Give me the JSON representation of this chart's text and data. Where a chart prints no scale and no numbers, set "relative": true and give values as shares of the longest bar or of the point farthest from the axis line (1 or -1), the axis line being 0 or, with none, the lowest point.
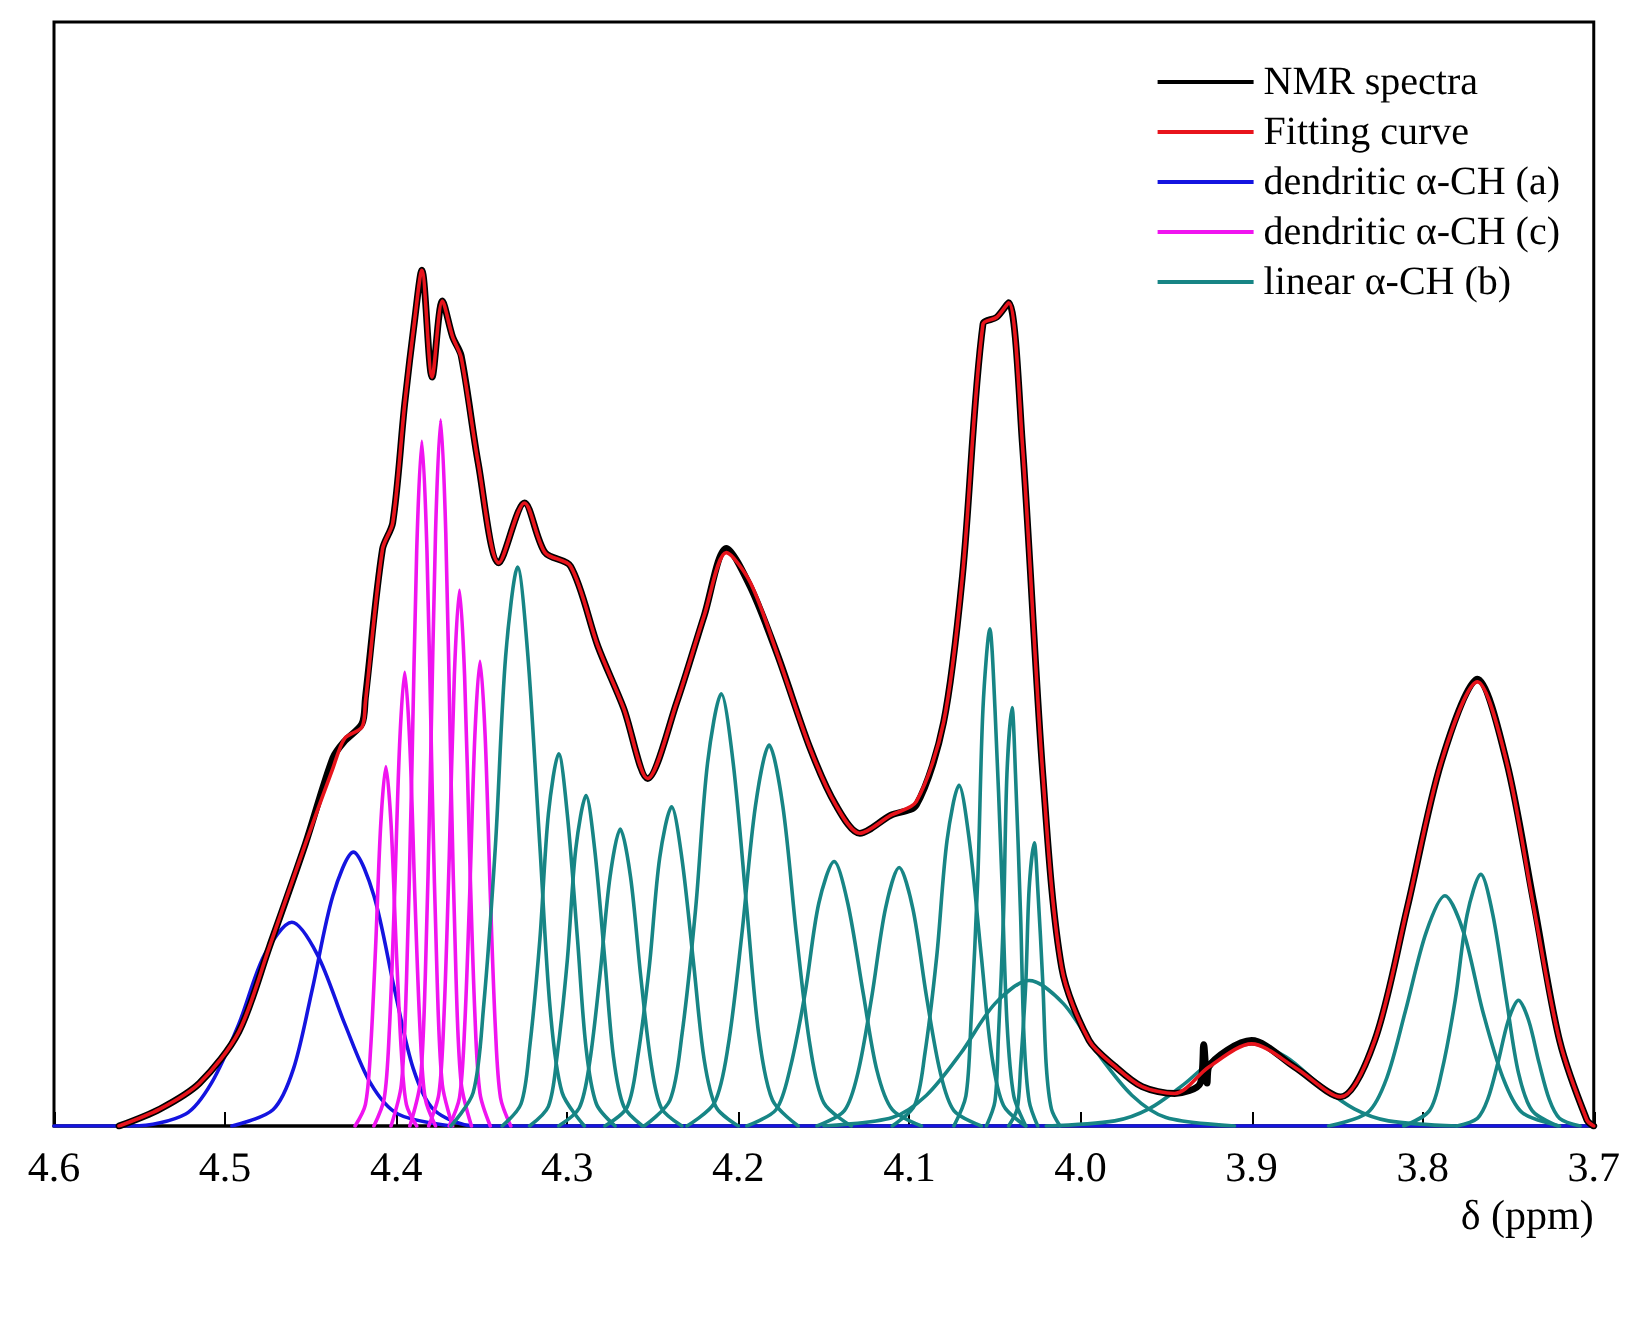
{
  "chart_data": {
    "type": "line",
    "relative": true,
    "xlabel": "δ (ppm)",
    "xlim": [
      4.6,
      3.7
    ],
    "xticks": [
      {
        "value": 4.6,
        "label": "4.6"
      },
      {
        "value": 4.5,
        "label": "4.5"
      },
      {
        "value": 4.4,
        "label": "4.4"
      },
      {
        "value": 4.3,
        "label": "4.3"
      },
      {
        "value": 4.2,
        "label": "4.2"
      },
      {
        "value": 4.1,
        "label": "4.1"
      },
      {
        "value": 4.0,
        "label": "4.0"
      },
      {
        "value": 3.9,
        "label": "3.9"
      },
      {
        "value": 3.8,
        "label": "3.8"
      },
      {
        "value": 3.7,
        "label": "3.7"
      }
    ],
    "grid": false,
    "legend": "top right",
    "marker": "none",
    "series": [
      {
        "name": "NMR spectra",
        "color": "#000000",
        "x": [
          4.562,
          4.538,
          4.515,
          4.492,
          4.474,
          4.453,
          4.437,
          4.43,
          4.42,
          4.418,
          4.408,
          4.402,
          4.395,
          4.389,
          4.385,
          4.379,
          4.373,
          4.367,
          4.362,
          4.352,
          4.34,
          4.325,
          4.313,
          4.298,
          4.282,
          4.267,
          4.253,
          4.236,
          4.22,
          4.207,
          4.193,
          4.177,
          4.158,
          4.143,
          4.129,
          4.111,
          4.096,
          4.08,
          4.069,
          4.057,
          4.049,
          4.042,
          4.034,
          4.022,
          4.011,
          3.995,
          3.98,
          3.964,
          3.945,
          3.93,
          3.928,
          3.926,
          3.925,
          3.9,
          3.875,
          3.848,
          3.828,
          3.809,
          3.789,
          3.768,
          3.751,
          3.735,
          3.72,
          3.704,
          3.7
        ],
        "values": [
          0,
          0.02,
          0.05,
          0.11,
          0.21,
          0.33,
          0.43,
          0.45,
          0.47,
          0.5,
          0.674,
          0.705,
          0.844,
          0.945,
          1,
          0.875,
          0.964,
          0.922,
          0.9,
          0.774,
          0.658,
          0.728,
          0.67,
          0.654,
          0.56,
          0.488,
          0.406,
          0.495,
          0.596,
          0.675,
          0.63,
          0.55,
          0.441,
          0.375,
          0.342,
          0.363,
          0.375,
          0.472,
          0.643,
          0.937,
          0.945,
          0.962,
          0.798,
          0.41,
          0.185,
          0.1,
          0.07,
          0.046,
          0.038,
          0.05,
          0.095,
          0.05,
          0.069,
          0.1,
          0.069,
          0.034,
          0.1,
          0.255,
          0.426,
          0.522,
          0.426,
          0.26,
          0.1,
          0.007,
          0
        ]
      },
      {
        "name": "Fitting curve",
        "color": "#e8141c",
        "x": [
          4.562,
          4.538,
          4.515,
          4.492,
          4.474,
          4.453,
          4.437,
          4.43,
          4.42,
          4.418,
          4.408,
          4.402,
          4.395,
          4.389,
          4.385,
          4.379,
          4.373,
          4.367,
          4.362,
          4.352,
          4.34,
          4.325,
          4.313,
          4.298,
          4.282,
          4.267,
          4.253,
          4.236,
          4.22,
          4.207,
          4.193,
          4.177,
          4.158,
          4.143,
          4.129,
          4.111,
          4.096,
          4.08,
          4.069,
          4.057,
          4.049,
          4.042,
          4.034,
          4.022,
          4.011,
          3.995,
          3.98,
          3.964,
          3.945,
          3.925,
          3.9,
          3.875,
          3.848,
          3.828,
          3.809,
          3.789,
          3.768,
          3.751,
          3.735,
          3.72,
          3.704,
          3.7
        ],
        "values": [
          0,
          0.02,
          0.05,
          0.11,
          0.21,
          0.33,
          0.418,
          0.453,
          0.466,
          0.495,
          0.674,
          0.705,
          0.844,
          0.945,
          1,
          0.875,
          0.964,
          0.922,
          0.898,
          0.774,
          0.658,
          0.728,
          0.67,
          0.654,
          0.56,
          0.488,
          0.406,
          0.495,
          0.596,
          0.67,
          0.635,
          0.55,
          0.441,
          0.375,
          0.342,
          0.363,
          0.379,
          0.472,
          0.643,
          0.937,
          0.945,
          0.962,
          0.798,
          0.41,
          0.185,
          0.1,
          0.07,
          0.046,
          0.038,
          0.069,
          0.096,
          0.069,
          0.034,
          0.1,
          0.255,
          0.426,
          0.519,
          0.426,
          0.255,
          0.1,
          0.007,
          0
        ]
      },
      {
        "name": "dendritic α-CH (a)",
        "color": "#1414e0",
        "x": [
          4.6,
          4.554,
          4.523,
          4.508,
          4.492,
          4.477,
          4.461,
          4.446,
          4.43,
          4.415,
          4.399,
          4.368
        ],
        "values": [
          0,
          0,
          0.014,
          0.05,
          0.119,
          0.2,
          0.238,
          0.2,
          0.119,
          0.05,
          0.014,
          0
        ]
      },
      {
        "color": "#1414e0",
        "x": [
          4.496,
          4.472,
          4.46,
          4.449,
          4.437,
          4.425,
          4.413,
          4.401,
          4.39,
          4.378,
          4.354,
          3.7
        ],
        "values": [
          0,
          0.019,
          0.067,
          0.16,
          0.269,
          0.32,
          0.269,
          0.16,
          0.067,
          0.019,
          0,
          0
        ]
      },
      {
        "name": "dendritic α-CH (c)",
        "color": "#f014f0",
        "x": [
          4.424,
          4.418,
          4.415,
          4.412,
          4.409,
          4.406,
          4.403,
          4.4,
          4.397,
          4.394,
          4.388
        ],
        "values": [
          0,
          0.025,
          0.088,
          0.21,
          0.353,
          0.42,
          0.353,
          0.21,
          0.088,
          0.025,
          0
        ]
      },
      {
        "color": "#f014f0",
        "x": [
          4.413,
          4.407,
          4.404,
          4.401,
          4.398,
          4.395,
          4.392,
          4.389,
          4.386,
          4.383,
          4.377
        ],
        "values": [
          0,
          0.032,
          0.111,
          0.265,
          0.445,
          0.53,
          0.445,
          0.265,
          0.111,
          0.032,
          0
        ]
      },
      {
        "color": "#f014f0",
        "x": [
          4.403,
          4.397,
          4.394,
          4.391,
          4.388,
          4.385,
          4.382,
          4.379,
          4.376,
          4.373,
          4.367
        ],
        "values": [
          0,
          0.048,
          0.168,
          0.4,
          0.672,
          0.8,
          0.672,
          0.4,
          0.168,
          0.048,
          0
        ]
      },
      {
        "color": "#f014f0",
        "x": [
          4.392,
          4.386,
          4.383,
          4.38,
          4.377,
          4.374,
          4.371,
          4.368,
          4.365,
          4.362,
          4.356
        ],
        "values": [
          0,
          0.05,
          0.173,
          0.413,
          0.693,
          0.825,
          0.693,
          0.413,
          0.173,
          0.05,
          0
        ]
      },
      {
        "color": "#f014f0",
        "x": [
          4.381,
          4.375,
          4.372,
          4.369,
          4.366,
          4.363,
          4.36,
          4.357,
          4.354,
          4.351,
          4.345
        ],
        "values": [
          0,
          0.038,
          0.131,
          0.313,
          0.526,
          0.626,
          0.526,
          0.313,
          0.131,
          0.038,
          0
        ]
      },
      {
        "color": "#f014f0",
        "x": [
          4.369,
          4.363,
          4.36,
          4.357,
          4.354,
          4.351,
          4.348,
          4.345,
          4.342,
          4.339,
          4.333
        ],
        "values": [
          0,
          0.033,
          0.114,
          0.272,
          0.456,
          0.543,
          0.456,
          0.272,
          0.114,
          0.033,
          0
        ]
      },
      {
        "name": "linear α-CH (b)",
        "color": "#178585",
        "x": [
          4.368,
          4.355,
          4.349,
          4.342,
          4.336,
          4.329,
          4.323,
          4.316,
          4.31,
          4.303,
          4.29
        ],
        "values": [
          0,
          0.039,
          0.137,
          0.327,
          0.549,
          0.653,
          0.549,
          0.327,
          0.137,
          0.039,
          0
        ]
      },
      {
        "color": "#178585",
        "x": [
          4.338,
          4.327,
          4.322,
          4.316,
          4.311,
          4.305,
          4.3,
          4.294,
          4.289,
          4.283,
          4.272
        ],
        "values": [
          0,
          0.026,
          0.091,
          0.218,
          0.365,
          0.435,
          0.365,
          0.218,
          0.091,
          0.026,
          0
        ]
      },
      {
        "color": "#178585",
        "x": [
          4.322,
          4.311,
          4.306,
          4.3,
          4.295,
          4.289,
          4.284,
          4.278,
          4.273,
          4.267,
          4.256
        ],
        "values": [
          0,
          0.023,
          0.081,
          0.193,
          0.324,
          0.386,
          0.324,
          0.193,
          0.081,
          0.023,
          0
        ]
      },
      {
        "color": "#178585",
        "x": [
          4.305,
          4.293,
          4.287,
          4.281,
          4.275,
          4.269,
          4.263,
          4.257,
          4.251,
          4.245,
          4.233
        ],
        "values": [
          0,
          0.021,
          0.073,
          0.174,
          0.291,
          0.347,
          0.291,
          0.174,
          0.073,
          0.021,
          0
        ]
      },
      {
        "color": "#178585",
        "x": [
          4.278,
          4.265,
          4.259,
          4.252,
          4.246,
          4.239,
          4.233,
          4.226,
          4.22,
          4.213,
          4.2
        ],
        "values": [
          0,
          0.022,
          0.078,
          0.187,
          0.313,
          0.373,
          0.313,
          0.187,
          0.078,
          0.022,
          0
        ]
      },
      {
        "color": "#178585",
        "x": [
          4.255,
          4.24,
          4.233,
          4.225,
          4.218,
          4.21,
          4.203,
          4.195,
          4.188,
          4.18,
          4.165
        ],
        "values": [
          0,
          0.03,
          0.106,
          0.253,
          0.424,
          0.505,
          0.424,
          0.253,
          0.106,
          0.03,
          0
        ]
      },
      {
        "color": "#178585",
        "x": [
          4.23,
          4.214,
          4.206,
          4.198,
          4.19,
          4.182,
          4.174,
          4.166,
          4.158,
          4.15,
          4.134
        ],
        "values": [
          0,
          0.027,
          0.093,
          0.223,
          0.374,
          0.445,
          0.374,
          0.223,
          0.093,
          0.027,
          0
        ]
      },
      {
        "color": "#178585",
        "x": [
          4.195,
          4.178,
          4.17,
          4.161,
          4.153,
          4.144,
          4.136,
          4.127,
          4.119,
          4.11,
          4.093
        ],
        "values": [
          0,
          0.019,
          0.065,
          0.155,
          0.26,
          0.309,
          0.26,
          0.155,
          0.065,
          0.019,
          0
        ]
      },
      {
        "color": "#178585",
        "x": [
          4.154,
          4.138,
          4.13,
          4.122,
          4.114,
          4.106,
          4.098,
          4.09,
          4.082,
          4.074,
          4.058
        ],
        "values": [
          0,
          0.018,
          0.063,
          0.151,
          0.254,
          0.302,
          0.254,
          0.151,
          0.063,
          0.018,
          0
        ]
      },
      {
        "color": "#178585",
        "x": [
          4.11,
          4.097,
          4.091,
          4.084,
          4.078,
          4.071,
          4.065,
          4.058,
          4.052,
          4.045,
          4.032
        ],
        "values": [
          0,
          0.024,
          0.084,
          0.199,
          0.334,
          0.398,
          0.334,
          0.199,
          0.084,
          0.024,
          0
        ]
      },
      {
        "color": "#178585",
        "x": [
          4.074,
          4.067,
          4.064,
          4.06,
          4.057,
          4.053,
          4.05,
          4.046,
          4.043,
          4.039,
          4.032
        ],
        "values": [
          0,
          0.035,
          0.122,
          0.291,
          0.488,
          0.581,
          0.488,
          0.291,
          0.122,
          0.035,
          0
        ]
      },
      {
        "color": "#178585",
        "x": [
          4.055,
          4.05,
          4.048,
          4.045,
          4.043,
          4.04,
          4.038,
          4.035,
          4.033,
          4.03,
          4.025
        ],
        "values": [
          0,
          0.029,
          0.103,
          0.245,
          0.411,
          0.489,
          0.411,
          0.245,
          0.103,
          0.029,
          0
        ]
      },
      {
        "color": "#178585",
        "x": [
          4.042,
          4.037,
          4.035,
          4.032,
          4.03,
          4.027,
          4.025,
          4.022,
          4.02,
          4.017,
          4.012
        ],
        "values": [
          0,
          0.02,
          0.07,
          0.166,
          0.278,
          0.331,
          0.278,
          0.166,
          0.07,
          0.02,
          0
        ]
      },
      {
        "color": "#178585",
        "x": [
          4.15,
          4.11,
          4.09,
          4.07,
          4.05,
          4.03,
          4.01,
          3.99,
          3.97,
          3.95,
          3.91
        ],
        "values": [
          0,
          0.01,
          0.036,
          0.085,
          0.143,
          0.17,
          0.143,
          0.085,
          0.036,
          0.01,
          0
        ]
      },
      {
        "color": "#178585",
        "x": [
          4.02,
          3.98,
          3.96,
          3.94,
          3.92,
          3.9,
          3.88,
          3.86,
          3.84,
          3.82,
          3.78
        ],
        "values": [
          0,
          0.006,
          0.02,
          0.048,
          0.081,
          0.096,
          0.081,
          0.048,
          0.02,
          0.006,
          0
        ]
      },
      {
        "color": "#178585",
        "x": [
          3.855,
          3.832,
          3.821,
          3.81,
          3.798,
          3.787,
          3.776,
          3.765,
          3.753,
          3.742,
          3.72
        ],
        "values": [
          0,
          0.016,
          0.056,
          0.135,
          0.226,
          0.269,
          0.226,
          0.135,
          0.056,
          0.016,
          0
        ]
      },
      {
        "color": "#178585",
        "x": [
          3.811,
          3.796,
          3.789,
          3.781,
          3.774,
          3.766,
          3.759,
          3.751,
          3.744,
          3.736,
          3.721
        ],
        "values": [
          0,
          0.018,
          0.062,
          0.147,
          0.247,
          0.294,
          0.247,
          0.147,
          0.062,
          0.018,
          0
        ]
      },
      {
        "color": "#178585",
        "x": [
          3.78,
          3.768,
          3.762,
          3.756,
          3.75,
          3.744,
          3.738,
          3.732,
          3.726,
          3.72,
          3.708
        ],
        "values": [
          0,
          0.009,
          0.031,
          0.074,
          0.123,
          0.147,
          0.123,
          0.074,
          0.031,
          0.009,
          0
        ]
      }
    ]
  }
}
